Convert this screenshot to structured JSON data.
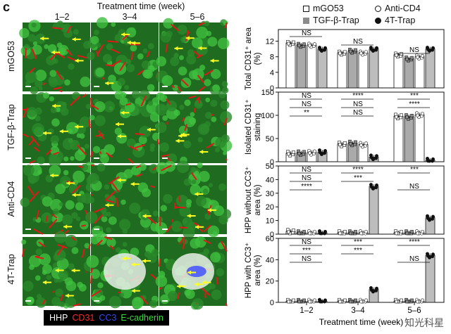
{
  "figure": {
    "panel_letter": "c",
    "treatment_header": "Treatment time (week)",
    "column_labels": [
      "1–2",
      "3–4",
      "5–6"
    ],
    "row_labels": [
      "mGO53",
      "TGF-β-Trap",
      "Anti-CD4",
      "4T-Trap"
    ],
    "stain_legend": [
      {
        "text": "HHP",
        "color": "#ffffff"
      },
      {
        "text": "CD31",
        "color": "#ff2a2a"
      },
      {
        "text": "CC3",
        "color": "#3b49ff"
      },
      {
        "text": "E-cadherin",
        "color": "#35e035"
      }
    ],
    "watermark": "知光科星"
  },
  "chart_legend": [
    {
      "name": "mGO53",
      "marker": "square-open",
      "color": "#ffffff"
    },
    {
      "name": "Anti-CD4",
      "marker": "circle-open",
      "color": "#ffffff"
    },
    {
      "name": "TGF-β-Trap",
      "marker": "square-filled",
      "color": "#8c8c8c"
    },
    {
      "name": "4T-Trap",
      "marker": "circle-filled",
      "color": "#111111"
    }
  ],
  "chart_data": [
    {
      "type": "bar",
      "ylabel": "Total CD31⁺ area (%)",
      "ylim": [
        0,
        15
      ],
      "yticks": [
        0,
        4,
        8,
        12
      ],
      "categories": [
        "1–2",
        "3–4",
        "5–6"
      ],
      "series": [
        {
          "name": "mGO53",
          "values": [
            11.5,
            9,
            8.5
          ]
        },
        {
          "name": "TGF-β-Trap",
          "values": [
            11,
            9.5,
            7.5
          ]
        },
        {
          "name": "Anti-CD4",
          "values": [
            11,
            9,
            8
          ]
        },
        {
          "name": "4T-Trap",
          "values": [
            10,
            10,
            10
          ]
        }
      ],
      "significance": [
        "NS",
        "NS",
        "NS"
      ]
    },
    {
      "type": "bar",
      "ylabel": "Isolated CD31⁺ staining",
      "ylim": [
        0,
        150
      ],
      "yticks": [
        0,
        50,
        100,
        150
      ],
      "categories": [
        "1–2",
        "3–4",
        "5–6"
      ],
      "series": [
        {
          "name": "mGO53",
          "values": [
            18,
            38,
            98
          ]
        },
        {
          "name": "TGF-β-Trap",
          "values": [
            19,
            40,
            97
          ]
        },
        {
          "name": "Anti-CD4",
          "values": [
            20,
            37,
            101
          ]
        },
        {
          "name": "4T-Trap",
          "values": [
            21,
            10,
            3
          ]
        }
      ],
      "significance": [
        "NS",
        "NS",
        "**",
        "****",
        "NS",
        "NS",
        "***",
        "****"
      ]
    },
    {
      "type": "bar",
      "ylabel": "HPP without CC3⁺ area (%)",
      "ylim": [
        0,
        50
      ],
      "yticks": [
        0,
        10,
        20,
        30,
        40,
        50
      ],
      "categories": [
        "1–2",
        "3–4",
        "5–6"
      ],
      "series": [
        {
          "name": "mGO53",
          "values": [
            2,
            1,
            1
          ]
        },
        {
          "name": "TGF-β-Trap",
          "values": [
            1,
            1,
            1
          ]
        },
        {
          "name": "Anti-CD4",
          "values": [
            1,
            1,
            1
          ]
        },
        {
          "name": "4T-Trap",
          "values": [
            1,
            35,
            12
          ]
        }
      ],
      "significance": [
        "NS",
        "NS",
        "****",
        "****",
        "***",
        "NS",
        "***"
      ]
    },
    {
      "type": "bar",
      "ylabel": "HPP with CC3⁺ area (%)",
      "ylim": [
        0,
        60
      ],
      "yticks": [
        0,
        20,
        40,
        60
      ],
      "xlabel": "Treatment time (week)",
      "categories": [
        "1–2",
        "3–4",
        "5–6"
      ],
      "series": [
        {
          "name": "mGO53",
          "values": [
            1,
            1,
            1
          ]
        },
        {
          "name": "TGF-β-Trap",
          "values": [
            1,
            1,
            1
          ]
        },
        {
          "name": "Anti-CD4",
          "values": [
            1,
            1,
            1
          ]
        },
        {
          "name": "4T-Trap",
          "values": [
            1,
            12,
            44
          ]
        }
      ],
      "significance": [
        "NS",
        "***",
        "NS",
        "***",
        "***",
        "NS",
        "****"
      ]
    }
  ]
}
